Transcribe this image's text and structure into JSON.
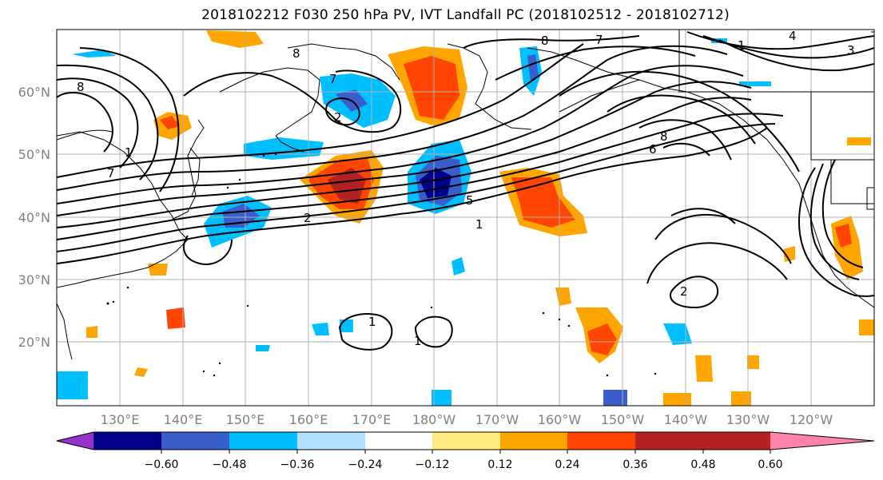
{
  "title": "2018102212 F030 250 hPa PV, IVT Landfall PC (2018102512 - 2018102712)",
  "lat_labels": [
    "60°N",
    "50°N",
    "40°N",
    "30°N",
    "20°N"
  ],
  "lon_labels": [
    "130°E",
    "140°E",
    "150°E",
    "160°E",
    "170°E",
    "180°W",
    "170°W",
    "160°W",
    "150°W",
    "140°W",
    "130°W",
    "120°W"
  ],
  "colorbar": {
    "ticks": [
      "−0.60",
      "−0.48",
      "−0.36",
      "−0.24",
      "−0.12",
      "0.12",
      "0.24",
      "0.36",
      "0.48",
      "0.60"
    ],
    "colors": [
      "#9932cc",
      "#00008b",
      "#3a5fcd",
      "#00bfff",
      "#b0e0ff",
      "#ffffff",
      "#ffeb7f",
      "#ffa500",
      "#ff4500",
      "#b22222",
      "#ff82ab"
    ]
  },
  "contour_labels": [
    "8",
    "8",
    "7",
    "7",
    "2",
    "2",
    "5",
    "1",
    "8",
    "6",
    "1",
    "1",
    "1",
    "2",
    "8",
    "7",
    "1",
    "4",
    "3"
  ]
}
